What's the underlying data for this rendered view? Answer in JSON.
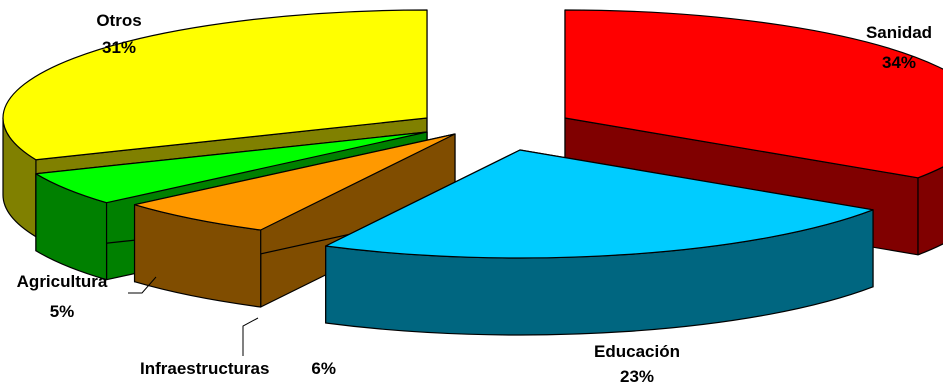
{
  "chart_data": {
    "type": "pie",
    "title": "",
    "slices": [
      {
        "label": "Sanidad",
        "value": 34,
        "value_label": "34%",
        "color": "#ff0000"
      },
      {
        "label": "Educación",
        "value": 23,
        "value_label": "23%",
        "color": "#00ccff"
      },
      {
        "label": "Infraestructuras",
        "value": 6,
        "value_label": "6%",
        "color": "#ff9900"
      },
      {
        "label": "Agricultura",
        "value": 5,
        "value_label": "5%",
        "color": "#00ff00"
      },
      {
        "label": "Otros",
        "value": 31,
        "value_label": "31%",
        "color": "#ffff00"
      }
    ],
    "style": "3d-exploded-pie",
    "legend": "none"
  }
}
